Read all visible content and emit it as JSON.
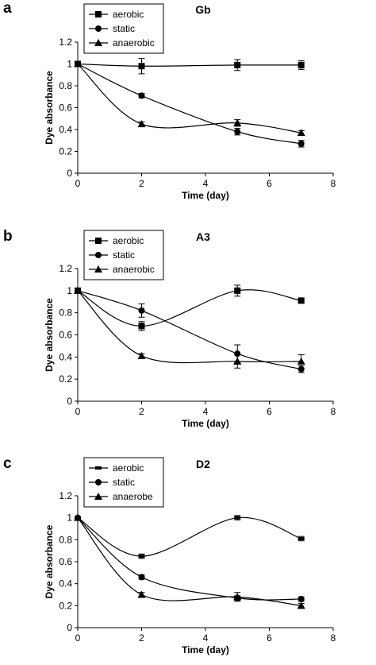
{
  "chart_data": [
    {
      "type": "line",
      "panel_letter": "a",
      "title": "Gb",
      "xlabel": "Time (day)",
      "ylabel": "Dye absorbance",
      "xlim": [
        0,
        8
      ],
      "ylim": [
        0,
        1.2
      ],
      "x_ticks": [
        "0",
        "2",
        "4",
        "6",
        "8"
      ],
      "y_ticks": [
        "0",
        "0.2",
        "0.4",
        "0.6",
        "0.8",
        "1",
        "1.2"
      ],
      "grid": false,
      "legend_position": "top-left",
      "series": [
        {
          "name": "aerobic",
          "marker": "square",
          "x": [
            0,
            2,
            5,
            7
          ],
          "y": [
            1.0,
            0.98,
            0.99,
            0.99
          ],
          "err": [
            0,
            0.07,
            0.05,
            0.04
          ]
        },
        {
          "name": "static",
          "marker": "circle",
          "x": [
            0,
            2,
            5,
            7
          ],
          "y": [
            1.0,
            0.71,
            0.38,
            0.27
          ],
          "err": [
            0,
            0.02,
            0.03,
            0.03
          ]
        },
        {
          "name": "anaerobic",
          "marker": "triangle",
          "x": [
            0,
            2,
            5,
            7
          ],
          "y": [
            1.0,
            0.45,
            0.46,
            0.37
          ],
          "err": [
            0,
            0.02,
            0.03,
            0.02
          ]
        }
      ]
    },
    {
      "type": "line",
      "panel_letter": "b",
      "title": "A3",
      "xlabel": "Time (day)",
      "ylabel": "Dye absorbance",
      "xlim": [
        0,
        8
      ],
      "ylim": [
        0,
        1.2
      ],
      "x_ticks": [
        "0",
        "2",
        "4",
        "6",
        "8"
      ],
      "y_ticks": [
        "0",
        "0.2",
        "0.4",
        "0.6",
        "0.8",
        "1",
        "1.2"
      ],
      "grid": false,
      "legend_position": "top-left",
      "series": [
        {
          "name": "aerobic",
          "marker": "square",
          "x": [
            0,
            2,
            5,
            7
          ],
          "y": [
            1.0,
            0.68,
            1.0,
            0.91
          ],
          "err": [
            0,
            0.04,
            0.05,
            0.02
          ]
        },
        {
          "name": "static",
          "marker": "circle",
          "x": [
            0,
            2,
            5,
            7
          ],
          "y": [
            1.0,
            0.82,
            0.43,
            0.29
          ],
          "err": [
            0,
            0.06,
            0.08,
            0.03
          ]
        },
        {
          "name": "anaerobic",
          "marker": "triangle",
          "x": [
            0,
            2,
            5,
            7
          ],
          "y": [
            1.0,
            0.41,
            0.36,
            0.36
          ],
          "err": [
            0,
            0.02,
            0.06,
            0.06
          ]
        }
      ]
    },
    {
      "type": "line",
      "panel_letter": "c",
      "title": "D2",
      "xlabel": "Time (day)",
      "ylabel": "Dye absorbance",
      "xlim": [
        0,
        8
      ],
      "ylim": [
        0,
        1.2
      ],
      "x_ticks": [
        "0",
        "2",
        "4",
        "6",
        "8"
      ],
      "y_ticks": [
        "0",
        "0.2",
        "0.4",
        "0.6",
        "0.8",
        "1",
        "1.2"
      ],
      "grid": false,
      "legend_position": "top-left",
      "series": [
        {
          "name": "aerobic",
          "marker": "dash",
          "x": [
            0,
            2,
            5,
            7
          ],
          "y": [
            1.0,
            0.65,
            1.0,
            0.81
          ],
          "err": [
            0,
            0.02,
            0.02,
            0.02
          ]
        },
        {
          "name": "static",
          "marker": "circle",
          "x": [
            0,
            2,
            5,
            7
          ],
          "y": [
            1.0,
            0.46,
            0.27,
            0.26
          ],
          "err": [
            0,
            0.02,
            0.02,
            0.02
          ]
        },
        {
          "name": "anaerobe",
          "marker": "triangle",
          "x": [
            0,
            2,
            5,
            7
          ],
          "y": [
            1.0,
            0.3,
            0.28,
            0.2
          ],
          "err": [
            0,
            0.02,
            0.04,
            0.02
          ]
        }
      ]
    }
  ]
}
